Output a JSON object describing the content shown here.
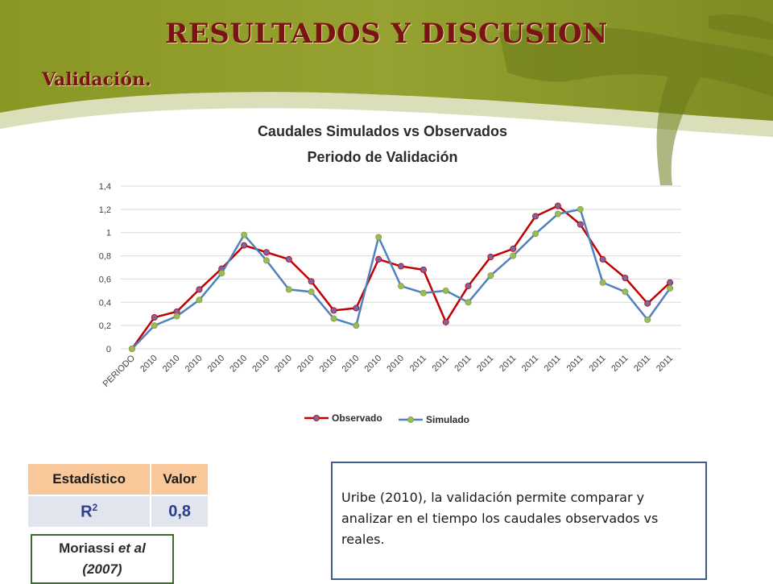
{
  "header": {
    "title": "RESULTADOS Y DISCUSION",
    "subtitle": "Validación."
  },
  "colors": {
    "banner_green": "#8e9a2a",
    "title_red": "#7a1414",
    "observado_line": "#c00000",
    "observado_marker": "#8064a2",
    "simulado_line": "#4f81bd",
    "simulado_marker": "#9bbb59",
    "table_header": "#f8c79a",
    "table_cell": "#e1e5ee"
  },
  "chart_data": {
    "type": "line",
    "title": [
      "Caudales Simulados vs Observados",
      "Periodo de Validación"
    ],
    "xlabel": "",
    "ylabel": "",
    "categories": [
      "PERIODO",
      "2010",
      "2010",
      "2010",
      "2010",
      "2010",
      "2010",
      "2010",
      "2010",
      "2010",
      "2010",
      "2010",
      "2010",
      "2011",
      "2011",
      "2011",
      "2011",
      "2011",
      "2011",
      "2011",
      "2011",
      "2011",
      "2011",
      "2011",
      "2011"
    ],
    "ylim": [
      0,
      1.4
    ],
    "yticks": [
      "0",
      "0,2",
      "0,4",
      "0,6",
      "0,8",
      "1",
      "1,2",
      "1,4"
    ],
    "grid": true,
    "legend_position": "bottom",
    "series": [
      {
        "name": "Observado",
        "values": [
          0,
          0.27,
          0.32,
          0.51,
          0.69,
          0.89,
          0.83,
          0.77,
          0.58,
          0.33,
          0.35,
          0.77,
          0.71,
          0.68,
          0.23,
          0.54,
          0.79,
          0.86,
          1.14,
          1.23,
          1.07,
          0.77,
          0.61,
          0.39,
          0.57
        ]
      },
      {
        "name": "Simulado",
        "values": [
          0,
          0.2,
          0.28,
          0.42,
          0.65,
          0.98,
          0.76,
          0.51,
          0.49,
          0.26,
          0.2,
          0.96,
          0.54,
          0.48,
          0.5,
          0.4,
          0.63,
          0.8,
          0.99,
          1.16,
          1.2,
          0.57,
          0.49,
          0.25,
          0.52
        ]
      }
    ]
  },
  "stats_table": {
    "headers": [
      "Estadístico",
      "Valor"
    ],
    "row": {
      "stat": "R",
      "stat_sup": "2",
      "value": "0,8"
    }
  },
  "reference": {
    "author": "Moriassi",
    "etal": "et al",
    "year": "(2007)"
  },
  "note": {
    "text": "Uribe (2010), la validación permite comparar y analizar en el tiempo los caudales observados vs reales."
  }
}
